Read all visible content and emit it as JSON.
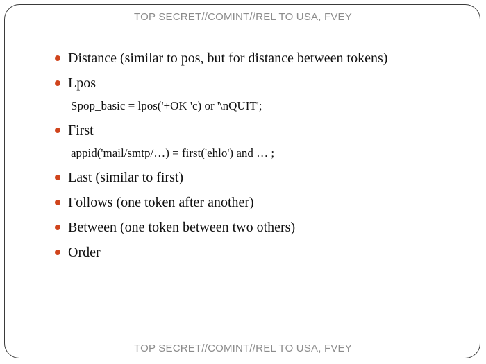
{
  "classification": {
    "top": "TOP SECRET//COMINT//REL TO USA, FVEY",
    "bottom": "TOP SECRET//COMINT//REL TO USA, FVEY"
  },
  "colors": {
    "bullet": "#d0441c",
    "text": "#111111",
    "classification": "#8c8c8c",
    "frame": "#3a3a3a"
  },
  "bullets": [
    {
      "text": "Distance (similar to pos, but for distance between tokens)"
    },
    {
      "text": "Lpos",
      "sub": "Spop_basic = lpos('+OK 'c) or '\\nQUIT';"
    },
    {
      "text": "First",
      "sub": "appid('mail/smtp/…) = first('ehlo') and … ;"
    },
    {
      "text": "Last (similar to first)"
    },
    {
      "text": "Follows (one token after another)"
    },
    {
      "text": "Between (one token between two others)"
    },
    {
      "text": "Order"
    }
  ]
}
